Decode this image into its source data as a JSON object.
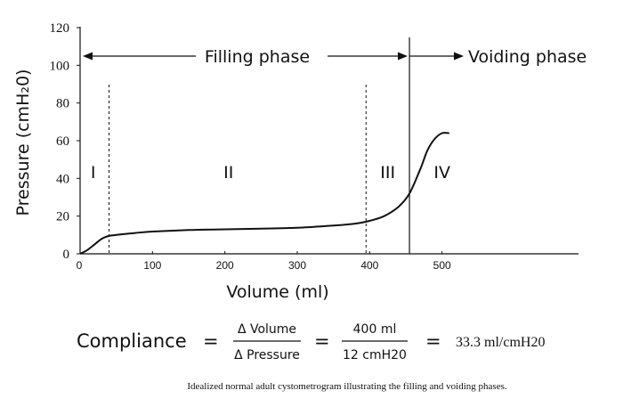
{
  "chart_data": {
    "type": "line",
    "xlabel": "Volume (ml)",
    "ylabel": "Pressure (cmH₂0)",
    "xlim": [
      0,
      640
    ],
    "ylim": [
      0,
      120
    ],
    "x_ticks": [
      "0",
      "100",
      "200",
      "300",
      "400",
      "500"
    ],
    "y_ticks": [
      "0",
      "20",
      "40",
      "60",
      "80",
      "100",
      "120"
    ],
    "grid": false,
    "series": [
      {
        "x": [
          0,
          10,
          20,
          30,
          40,
          50,
          75,
          100,
          150,
          200,
          250,
          300,
          350,
          380,
          400,
          420,
          440,
          455,
          470,
          480,
          490,
          500,
          510
        ],
        "y": [
          0,
          2,
          5,
          8,
          9.5,
          10,
          11,
          11.8,
          12.6,
          13,
          13.3,
          13.8,
          15,
          16,
          17.5,
          20,
          25,
          32,
          45,
          55,
          61,
          64,
          64
        ]
      }
    ],
    "phase_boundaries_x": [
      40,
      395,
      455
    ],
    "phase_labels": [
      {
        "label": "I",
        "x": 18,
        "y": 44
      },
      {
        "label": "II",
        "x": 205,
        "y": 44
      },
      {
        "label": "III",
        "x": 425,
        "y": 44
      },
      {
        "label": "IV",
        "x": 500,
        "y": 44
      }
    ],
    "phases": {
      "filling_label": "Filling phase",
      "voiding_label": "Voiding phase",
      "y_level": 104
    }
  },
  "formula": {
    "lhs": "Compliance",
    "eq": "=",
    "num1": "Δ Volume",
    "den1": "Δ Pressure",
    "num2": "400 ml",
    "den2": "12 cmH20",
    "result": "33.3 ml/cmH20"
  },
  "caption": "Idealized normal adult cystometrogram illustrating the filling and voiding phases."
}
